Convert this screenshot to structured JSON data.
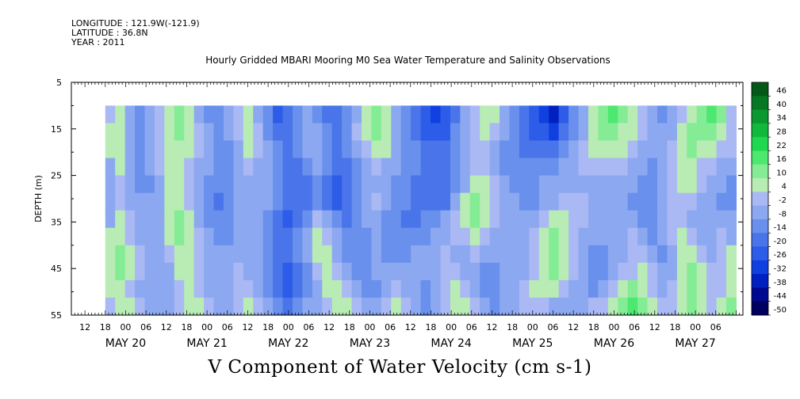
{
  "header": {
    "longitude": "LONGITUDE : 121.9W(-121.9)",
    "latitude": "LATITUDE : 36.8N",
    "year": "YEAR : 2011"
  },
  "chart_data": {
    "type": "heatmap",
    "title": "Hourly Gridded MBARI Mooring M0 Sea Water Temperature and Salinity Observations",
    "plot_title": "V Component of Water Velocity (cm s-1)",
    "ylabel": "DEPTH (m)",
    "xlabel": "",
    "ylim": [
      5,
      55
    ],
    "y_reversed": true,
    "y_ticks": [
      5,
      15,
      25,
      35,
      45,
      55
    ],
    "x_range_hours": [
      "MAY 19 08",
      "MAY 27 14"
    ],
    "data_start": "MAY 19 18",
    "data_end": "MAY 27 12",
    "data_depth_range": [
      10,
      55
    ],
    "hour_ticks": [
      "12",
      "18",
      "00",
      "06",
      "12",
      "18",
      "00",
      "06",
      "12",
      "18",
      "00",
      "06",
      "12",
      "18",
      "00",
      "06",
      "12",
      "18",
      "00",
      "06",
      "12",
      "18",
      "00",
      "06",
      "12",
      "18",
      "00",
      "06",
      "12",
      "18",
      "00",
      "06"
    ],
    "date_labels": [
      "MAY 20",
      "MAY 21",
      "MAY 22",
      "MAY 23",
      "MAY 24",
      "MAY 25",
      "MAY 26",
      "MAY 27"
    ],
    "colorbar": {
      "levels": [
        -50,
        -44,
        -38,
        -32,
        -26,
        -20,
        -14,
        -8,
        -2,
        4,
        10,
        16,
        22,
        28,
        34,
        40,
        46
      ],
      "tick_labels": [
        "46",
        "40",
        "34",
        "28",
        "22",
        "16",
        "10",
        "4",
        "-2",
        "-8",
        "-14",
        "-20",
        "-26",
        "-32",
        "-38",
        "-44",
        "-50"
      ],
      "colors": [
        "#00005e",
        "#000890",
        "#0020c0",
        "#1040e0",
        "#2c5ce8",
        "#4a74ea",
        "#6890ec",
        "#8ca8f0",
        "#aab8f4",
        "#b8ecb4",
        "#84ec94",
        "#4ce870",
        "#20d850",
        "#10b83c",
        "#0a9830",
        "#067824",
        "#045818"
      ]
    },
    "field": [
      [
        -2,
        4,
        -8,
        -14,
        -8,
        -2,
        4,
        10,
        4,
        -8,
        -14,
        -14,
        -8,
        -2,
        4,
        -8,
        -14,
        -26,
        -20,
        -14,
        -8,
        -14,
        -20,
        -20,
        -14,
        -8,
        4,
        10,
        4,
        -8,
        -14,
        -20,
        -26,
        -32,
        -26,
        -20,
        -8,
        -2,
        4,
        4,
        -8,
        -14,
        -20,
        -26,
        -32,
        -38,
        -26,
        -14,
        -8,
        4,
        10,
        16,
        10,
        4,
        -2,
        -8,
        -14,
        -8,
        -2,
        4,
        10,
        16,
        10,
        -2
      ],
      [
        4,
        4,
        -8,
        -14,
        -8,
        -2,
        4,
        10,
        4,
        -2,
        -8,
        -14,
        -8,
        -2,
        4,
        -2,
        -14,
        -20,
        -20,
        -14,
        -8,
        -8,
        -14,
        -20,
        -14,
        -2,
        4,
        10,
        4,
        -8,
        -14,
        -20,
        -26,
        -26,
        -26,
        -14,
        -8,
        -2,
        4,
        -2,
        -8,
        -14,
        -20,
        -26,
        -26,
        -32,
        -20,
        -14,
        -8,
        4,
        10,
        10,
        4,
        4,
        -2,
        -8,
        -8,
        -8,
        4,
        10,
        10,
        10,
        4,
        -2
      ],
      [
        4,
        4,
        -8,
        -14,
        -8,
        -2,
        4,
        4,
        4,
        -2,
        -8,
        -14,
        -14,
        -8,
        4,
        -2,
        -8,
        -14,
        -20,
        -14,
        -8,
        -8,
        -14,
        -20,
        -14,
        -8,
        -2,
        4,
        4,
        -8,
        -14,
        -14,
        -20,
        -20,
        -20,
        -14,
        -8,
        -2,
        -2,
        -8,
        -14,
        -14,
        -20,
        -20,
        -20,
        -20,
        -14,
        -8,
        -2,
        4,
        4,
        4,
        4,
        -2,
        -8,
        -8,
        -8,
        -2,
        4,
        10,
        4,
        4,
        -2,
        -2
      ],
      [
        -8,
        4,
        -8,
        -14,
        -8,
        -2,
        4,
        4,
        -2,
        -8,
        -8,
        -14,
        -14,
        -8,
        -2,
        -8,
        -8,
        -14,
        -20,
        -20,
        -14,
        -8,
        -14,
        -20,
        -20,
        -14,
        -8,
        -2,
        -8,
        -8,
        -14,
        -14,
        -20,
        -20,
        -20,
        -14,
        -8,
        -2,
        -2,
        -8,
        -14,
        -14,
        -14,
        -14,
        -14,
        -14,
        -8,
        -8,
        -2,
        -2,
        -2,
        -2,
        -2,
        -8,
        -8,
        -14,
        -8,
        -2,
        4,
        4,
        -2,
        -2,
        -8,
        -8
      ],
      [
        -8,
        -2,
        -8,
        -14,
        -14,
        -8,
        4,
        4,
        -2,
        -8,
        -14,
        -14,
        -14,
        -8,
        -8,
        -8,
        -8,
        -14,
        -20,
        -20,
        -20,
        -14,
        -20,
        -26,
        -20,
        -14,
        -8,
        -8,
        -8,
        -14,
        -14,
        -20,
        -20,
        -20,
        -20,
        -14,
        -8,
        4,
        4,
        -2,
        -8,
        -14,
        -14,
        -14,
        -8,
        -8,
        -8,
        -8,
        -8,
        -8,
        -8,
        -8,
        -8,
        -8,
        -14,
        -14,
        -8,
        -2,
        4,
        4,
        -2,
        -8,
        -8,
        -14
      ],
      [
        -8,
        -2,
        -8,
        -8,
        -8,
        -8,
        4,
        4,
        -2,
        -8,
        -14,
        -20,
        -14,
        -8,
        -8,
        -8,
        -8,
        -14,
        -20,
        -20,
        -20,
        -14,
        -20,
        -26,
        -20,
        -14,
        -8,
        -2,
        -8,
        -14,
        -14,
        -20,
        -20,
        -20,
        -20,
        -8,
        4,
        10,
        4,
        -2,
        -8,
        -8,
        -14,
        -14,
        -8,
        -8,
        -2,
        -2,
        -2,
        -8,
        -8,
        -8,
        -8,
        -14,
        -14,
        -14,
        -8,
        -2,
        -2,
        -2,
        -8,
        -8,
        -14,
        -14
      ],
      [
        -8,
        4,
        -2,
        -8,
        -8,
        -8,
        4,
        10,
        4,
        -8,
        -14,
        -14,
        -14,
        -8,
        -8,
        -8,
        -14,
        -20,
        -26,
        -20,
        -14,
        -2,
        -8,
        -14,
        -20,
        -14,
        -8,
        -8,
        -14,
        -14,
        -20,
        -20,
        -14,
        -14,
        -8,
        -2,
        4,
        10,
        4,
        -2,
        -8,
        -8,
        -8,
        -8,
        -2,
        4,
        4,
        -2,
        -2,
        -8,
        -8,
        -8,
        -8,
        -8,
        -14,
        -14,
        -8,
        -2,
        -2,
        -8,
        -8,
        -8,
        -8,
        -8
      ],
      [
        4,
        4,
        -2,
        -8,
        -8,
        -8,
        4,
        10,
        4,
        -2,
        -8,
        -14,
        -14,
        -8,
        -8,
        -8,
        -14,
        -20,
        -20,
        -14,
        -8,
        4,
        -2,
        -8,
        -14,
        -14,
        -14,
        -8,
        -14,
        -14,
        -14,
        -14,
        -14,
        -8,
        -8,
        -2,
        -2,
        4,
        -2,
        -8,
        -8,
        -8,
        -8,
        -2,
        4,
        10,
        4,
        -2,
        -8,
        -8,
        -8,
        -8,
        -8,
        -2,
        -8,
        -14,
        -8,
        -2,
        4,
        -2,
        -8,
        -8,
        -2,
        -8
      ],
      [
        4,
        10,
        4,
        -2,
        -8,
        -8,
        -2,
        4,
        4,
        -2,
        -8,
        -8,
        -8,
        -8,
        -8,
        -8,
        -14,
        -20,
        -20,
        -14,
        -8,
        4,
        4,
        -8,
        -14,
        -14,
        -14,
        -8,
        -14,
        -14,
        -14,
        -8,
        -8,
        -8,
        -2,
        -8,
        -8,
        -2,
        -8,
        -8,
        -8,
        -8,
        -8,
        -2,
        4,
        10,
        4,
        -2,
        -8,
        -14,
        -14,
        -8,
        -8,
        -2,
        -2,
        -8,
        -14,
        -8,
        4,
        4,
        -2,
        -8,
        -2,
        4
      ],
      [
        4,
        10,
        4,
        -2,
        -8,
        -8,
        -8,
        4,
        4,
        -2,
        -8,
        -8,
        -8,
        -2,
        -8,
        -8,
        -14,
        -20,
        -26,
        -20,
        -14,
        -2,
        4,
        -2,
        -8,
        -14,
        -14,
        -8,
        -8,
        -8,
        -8,
        -8,
        -8,
        -8,
        -2,
        -2,
        -8,
        -8,
        -14,
        -14,
        -8,
        -8,
        -8,
        -2,
        4,
        10,
        4,
        -2,
        -8,
        -14,
        -14,
        -8,
        -2,
        -2,
        4,
        -2,
        -8,
        -8,
        4,
        10,
        4,
        -2,
        -2,
        4
      ],
      [
        4,
        4,
        -2,
        -8,
        -8,
        -8,
        -8,
        -2,
        4,
        -2,
        -8,
        -8,
        -8,
        -2,
        -2,
        -8,
        -14,
        -20,
        -26,
        -20,
        -14,
        -8,
        4,
        4,
        -2,
        -8,
        -14,
        -14,
        -8,
        -2,
        -8,
        -8,
        -14,
        -8,
        -2,
        4,
        -2,
        -8,
        -14,
        -14,
        -8,
        -8,
        -2,
        4,
        4,
        4,
        -2,
        -8,
        -8,
        -14,
        -8,
        -2,
        4,
        10,
        4,
        -2,
        -8,
        -2,
        4,
        10,
        4,
        -2,
        -2,
        4
      ],
      [
        -2,
        4,
        4,
        -2,
        -8,
        -8,
        -8,
        -2,
        4,
        4,
        -2,
        -8,
        -8,
        -2,
        4,
        -2,
        -8,
        -14,
        -20,
        -14,
        -8,
        -8,
        -2,
        4,
        4,
        -2,
        -8,
        -8,
        -2,
        4,
        -2,
        -8,
        -14,
        -8,
        -2,
        4,
        4,
        -2,
        -8,
        -14,
        -8,
        -8,
        -2,
        -2,
        -2,
        -8,
        -8,
        -8,
        -8,
        -2,
        -2,
        4,
        10,
        16,
        10,
        4,
        -2,
        -2,
        4,
        10,
        4,
        -2,
        4,
        10
      ]
    ]
  }
}
